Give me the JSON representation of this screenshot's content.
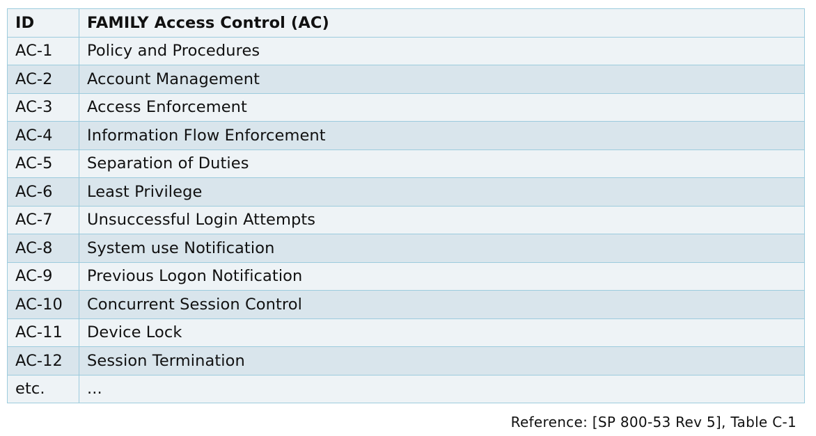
{
  "table": {
    "headers": [
      "ID",
      "FAMILY Access Control (AC)"
    ],
    "rows": [
      [
        "AC-1",
        "Policy and Procedures"
      ],
      [
        "AC-2",
        "Account Management"
      ],
      [
        "AC-3",
        "Access Enforcement"
      ],
      [
        "AC-4",
        "Information Flow Enforcement"
      ],
      [
        "AC-5",
        "Separation of Duties"
      ],
      [
        "AC-6",
        "Least Privilege"
      ],
      [
        "AC-7",
        "Unsuccessful Login Attempts"
      ],
      [
        "AC-8",
        "System use Notification"
      ],
      [
        "AC-9",
        "Previous Logon Notification"
      ],
      [
        "AC-10",
        "Concurrent Session Control"
      ],
      [
        "AC-11",
        "Device Lock"
      ],
      [
        "AC-12",
        "Session Termination"
      ],
      [
        "etc.",
        "..."
      ]
    ]
  },
  "footer": {
    "reference": "Reference: [SP 800-53 Rev 5], Table C-1"
  },
  "colors": {
    "row_light": "#eef3f6",
    "row_dark": "#d9e5ec",
    "border": "#9ccbdd"
  }
}
